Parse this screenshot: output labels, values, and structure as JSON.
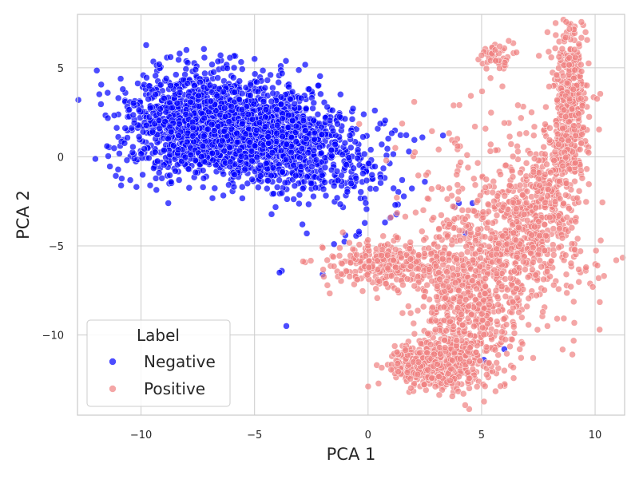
{
  "chart_data": {
    "type": "scatter",
    "title": "",
    "xlabel": "PCA 1",
    "ylabel": "PCA 2",
    "xlim": [
      -12.8,
      11.3
    ],
    "ylim": [
      -14.5,
      8.0
    ],
    "xticks": [
      -10,
      -5,
      0,
      5,
      10
    ],
    "yticks": [
      5,
      0,
      -5,
      -10
    ],
    "xtick_labels": [
      "−10",
      "−5",
      "0",
      "5",
      "10"
    ],
    "ytick_labels": [
      "5",
      "0",
      "−5",
      "−10"
    ],
    "grid": true,
    "legend": {
      "title": "Label",
      "placement": "lower-left",
      "entries": [
        "Negative",
        "Positive"
      ]
    },
    "series": [
      {
        "name": "Negative",
        "color": "#0000ff",
        "opacity": 0.7,
        "approx_count": 2600,
        "clusters": [
          {
            "cx": -6.8,
            "cy": 1.7,
            "sx": 1.9,
            "sy": 1.4,
            "n": 1800
          },
          {
            "cx": -3.8,
            "cy": 0.8,
            "sx": 1.5,
            "sy": 1.3,
            "n": 500
          },
          {
            "cx": -1.2,
            "cy": -0.5,
            "sx": 1.3,
            "sy": 1.4,
            "n": 200
          }
        ],
        "points": [
          [
            -11.5,
            0.6
          ],
          [
            -11.0,
            3.3
          ],
          [
            -10.8,
            3.8
          ],
          [
            -8.3,
            5.8
          ],
          [
            -8.0,
            6.0
          ],
          [
            -6.5,
            5.7
          ],
          [
            -5.9,
            5.0
          ],
          [
            -5.0,
            5.5
          ],
          [
            -4.3,
            4.6
          ],
          [
            -3.8,
            -6.4
          ],
          [
            -3.9,
            -6.5
          ],
          [
            -3.6,
            -9.5
          ],
          [
            -2.7,
            -4.3
          ],
          [
            -2.0,
            -6.6
          ],
          [
            -1.5,
            -4.9
          ],
          [
            -1.0,
            -4.4
          ],
          [
            -0.4,
            -4.2
          ],
          [
            0.3,
            2.6
          ],
          [
            1.2,
            -2.7
          ],
          [
            1.8,
            0.3
          ],
          [
            2.5,
            -1.4
          ],
          [
            3.3,
            1.2
          ],
          [
            3.8,
            -2.8
          ],
          [
            4.0,
            -2.6
          ],
          [
            4.3,
            -4.3
          ],
          [
            4.6,
            -2.6
          ],
          [
            5.1,
            -11.4
          ],
          [
            6.0,
            -10.8
          ],
          [
            -8.8,
            -2.6
          ],
          [
            -9.6,
            -1.6
          ],
          [
            -2.6,
            3.8
          ],
          [
            -1.8,
            2.8
          ],
          [
            -0.8,
            1.2
          ],
          [
            0.6,
            0.7
          ],
          [
            1.5,
            -1.3
          ],
          [
            -7.6,
            4.9
          ],
          [
            -10.3,
            1.9
          ],
          [
            -9.2,
            5.2
          ],
          [
            -4.9,
            4.2
          ],
          [
            -2.2,
            4.0
          ]
        ]
      },
      {
        "name": "Positive",
        "color": "#f08080",
        "opacity": 0.7,
        "approx_count": 2600,
        "clusters": [
          {
            "cx": 4.5,
            "cy": -8.0,
            "sx": 1.2,
            "sy": 2.2,
            "n": 650
          },
          {
            "cx": 3.0,
            "cy": -11.7,
            "sx": 1.0,
            "sy": 0.7,
            "n": 450
          },
          {
            "cx": 1.0,
            "cy": -6.0,
            "sx": 1.4,
            "sy": 0.6,
            "n": 300
          },
          {
            "cx": 7.0,
            "cy": -4.0,
            "sx": 1.1,
            "sy": 1.5,
            "n": 350
          },
          {
            "cx": 8.9,
            "cy": 3.0,
            "sx": 0.35,
            "sy": 2.1,
            "n": 400
          },
          {
            "cx": 8.2,
            "cy": -1.0,
            "sx": 0.6,
            "sy": 1.4,
            "n": 150
          },
          {
            "cx": 5.7,
            "cy": 5.6,
            "sx": 0.3,
            "sy": 0.4,
            "n": 40
          },
          {
            "cx": 5.5,
            "cy": -2.0,
            "sx": 2.0,
            "sy": 3.0,
            "n": 180
          },
          {
            "cx": 8.0,
            "cy": -7.0,
            "sx": 1.0,
            "sy": 1.0,
            "n": 60
          }
        ],
        "points": [
          [
            7.9,
            7.0
          ],
          [
            8.7,
            6.7
          ],
          [
            5.6,
            6.0
          ],
          [
            6.0,
            6.1
          ],
          [
            5.1,
            5.9
          ],
          [
            5.0,
            5.7
          ],
          [
            6.6,
            2.9
          ],
          [
            6.2,
            1.9
          ],
          [
            6.0,
            1.9
          ],
          [
            7.3,
            1.2
          ],
          [
            5.4,
            0.7
          ],
          [
            6.6,
            0.3
          ],
          [
            10.1,
            -6.1
          ],
          [
            10.2,
            -9.7
          ],
          [
            9.9,
            -7.3
          ],
          [
            9.0,
            -11.1
          ],
          [
            9.1,
            -5.2
          ],
          [
            6.8,
            -10.5
          ],
          [
            7.9,
            -9.5
          ],
          [
            1.3,
            -7.5
          ],
          [
            0.0,
            -5.0
          ],
          [
            -0.5,
            -5.5
          ],
          [
            -1.8,
            -5.8
          ],
          [
            -2.0,
            -5.1
          ],
          [
            1.0,
            -3.4
          ],
          [
            0.8,
            -0.2
          ],
          [
            1.2,
            0.5
          ],
          [
            2.8,
            -1.8
          ],
          [
            3.9,
            -1.0
          ],
          [
            4.4,
            -0.6
          ],
          [
            5.7,
            -2.2
          ],
          [
            8.0,
            -3.4
          ],
          [
            6.0,
            -12.0
          ],
          [
            4.8,
            -12.9
          ],
          [
            4.2,
            -13.3
          ],
          [
            9.6,
            -6.2
          ],
          [
            7.2,
            2.5
          ],
          [
            8.3,
            4.6
          ],
          [
            9.4,
            4.8
          ],
          [
            5.8,
            6.2
          ]
        ]
      }
    ]
  }
}
